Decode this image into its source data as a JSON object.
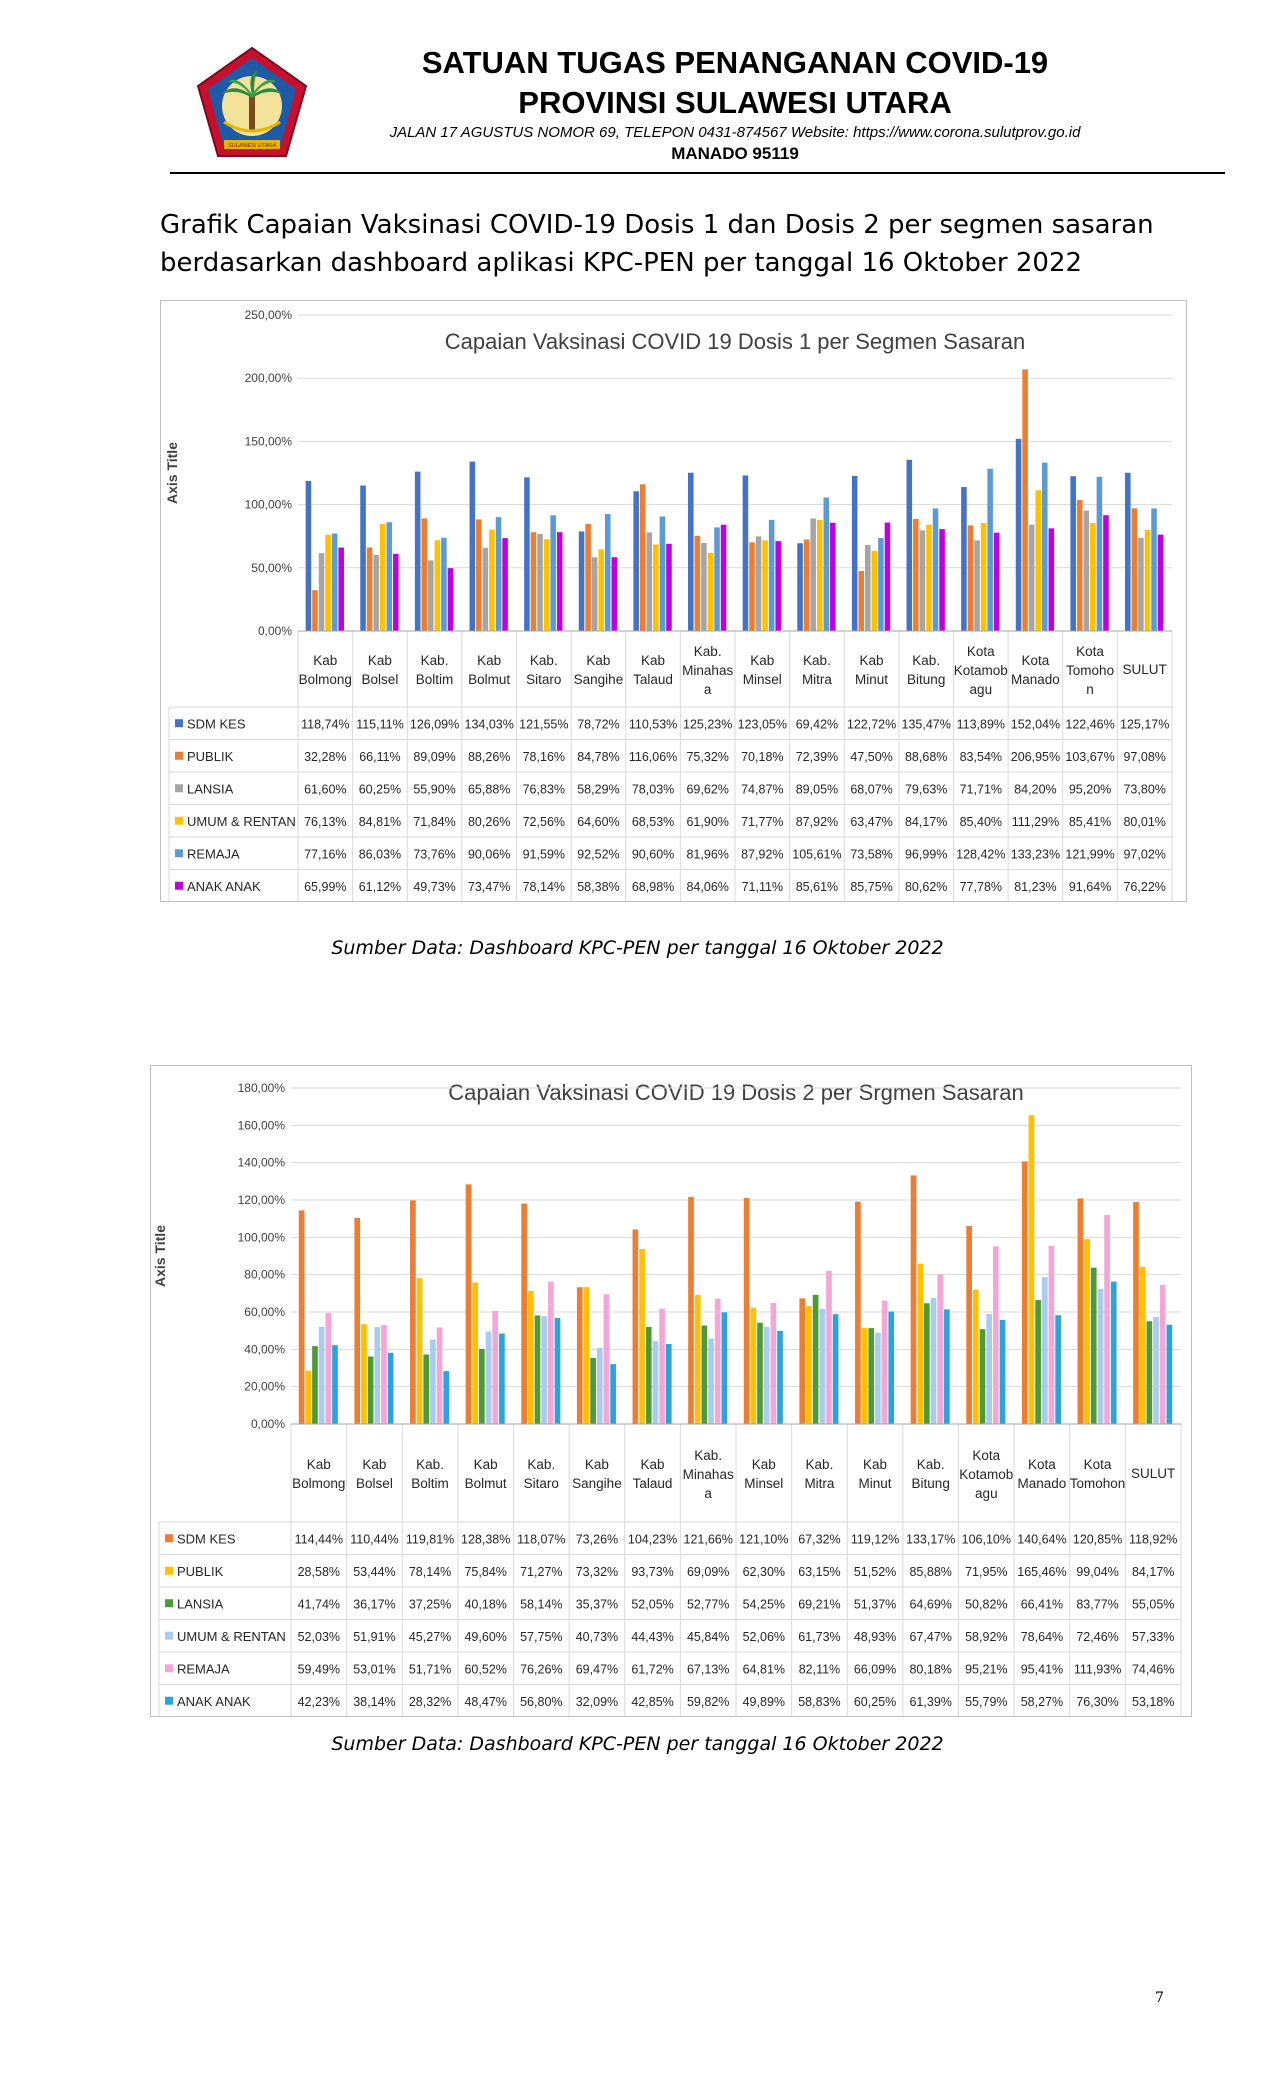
{
  "header": {
    "title_line1": "SATUAN TUGAS PENANGANAN COVID-19",
    "title_line2": "PROVINSI SULAWESI UTARA",
    "address": "JALAN  17  AGUSTUS  NOMOR  69,  TELEPON  0431-874567  Website: https://www.corona.sulutprov.go.id",
    "city": "MANADO  95119",
    "logo_text": "SULAWESI UTARA",
    "logo_colors": {
      "outer": "#c8102e",
      "inner": "#1e5aa8",
      "leaf": "#2e8b3e",
      "gold": "#e8b400"
    }
  },
  "intro": {
    "line1": "Grafik Capaian Vaksinasi COVID-19 Dosis 1 dan Dosis 2 per segmen sasaran",
    "line2": "berdasarkan dashboard aplikasi KPC-PEN per tanggal 16 Oktober 2022"
  },
  "source_1": "Sumber Data: Dashboard KPC-PEN per tanggal 16 Oktober 2022",
  "source_2": "Sumber Data: Dashboard KPC-PEN per tanggal 16 Oktober 2022",
  "page_number": "7",
  "chart_data": [
    {
      "type": "bar",
      "title": "Capaian Vaksinasi COVID 19 Dosis 1 per Segmen Sasaran",
      "ylabel": "Axis Title",
      "xlabel": "",
      "ylim": [
        0,
        250
      ],
      "yticks": [
        "0,00%",
        "50,00%",
        "100,00%",
        "150,00%",
        "200,00%",
        "250,00%"
      ],
      "grid": true,
      "legend": "data-table",
      "categories": [
        [
          "Kab",
          "Bolmong"
        ],
        [
          "Kab",
          "Bolsel"
        ],
        [
          "Kab.",
          "Boltim"
        ],
        [
          "Kab",
          "Bolmut"
        ],
        [
          "Kab.",
          "Sitaro"
        ],
        [
          "Kab",
          "Sangihe"
        ],
        [
          "Kab",
          "Talaud"
        ],
        [
          "Kab.",
          "Minahas",
          "a"
        ],
        [
          "Kab",
          "Minsel"
        ],
        [
          "Kab.",
          "Mitra"
        ],
        [
          "Kab",
          "Minut"
        ],
        [
          "Kab.",
          "Bitung"
        ],
        [
          "Kota",
          "Kotamob",
          "agu"
        ],
        [
          "Kota",
          "Manado"
        ],
        [
          "Kota",
          "Tomoho",
          "n"
        ],
        [
          "SULUT"
        ]
      ],
      "series": [
        {
          "name": "SDM KES",
          "color": "#4472c4",
          "values": [
            118.74,
            115.11,
            126.09,
            134.03,
            121.55,
            78.72,
            110.53,
            125.23,
            123.05,
            69.42,
            122.72,
            135.47,
            113.89,
            152.04,
            122.46,
            125.17
          ],
          "labels": [
            "118,74%",
            "115,11%",
            "126,09%",
            "134,03%",
            "121,55%",
            "78,72%",
            "110,53%",
            "125,23%",
            "123,05%",
            "69,42%",
            "122,72%",
            "135,47%",
            "113,89%",
            "152,04%",
            "122,46%",
            "125,17%"
          ]
        },
        {
          "name": "PUBLIK",
          "color": "#ed7d31",
          "values": [
            32.28,
            66.11,
            89.09,
            88.26,
            78.16,
            84.78,
            116.06,
            75.32,
            70.18,
            72.39,
            47.5,
            88.68,
            83.54,
            206.95,
            103.67,
            97.08
          ],
          "labels": [
            "32,28%",
            "66,11%",
            "89,09%",
            "88,26%",
            "78,16%",
            "84,78%",
            "116,06%",
            "75,32%",
            "70,18%",
            "72,39%",
            "47,50%",
            "88,68%",
            "83,54%",
            "206,95%",
            "103,67%",
            "97,08%"
          ]
        },
        {
          "name": "LANSIA",
          "color": "#a5a5a5",
          "values": [
            61.6,
            60.25,
            55.9,
            65.88,
            76.83,
            58.29,
            78.03,
            69.62,
            74.87,
            89.05,
            68.07,
            79.63,
            71.71,
            84.2,
            95.2,
            73.8
          ],
          "labels": [
            "61,60%",
            "60,25%",
            "55,90%",
            "65,88%",
            "76,83%",
            "58,29%",
            "78,03%",
            "69,62%",
            "74,87%",
            "89,05%",
            "68,07%",
            "79,63%",
            "71,71%",
            "84,20%",
            "95,20%",
            "73,80%"
          ]
        },
        {
          "name": "UMUM & RENTAN",
          "color": "#ffc000",
          "values": [
            76.13,
            84.81,
            71.84,
            80.26,
            72.56,
            64.6,
            68.53,
            61.9,
            71.77,
            87.92,
            63.47,
            84.17,
            85.4,
            111.29,
            85.41,
            80.01
          ],
          "labels": [
            "76,13%",
            "84,81%",
            "71,84%",
            "80,26%",
            "72,56%",
            "64,60%",
            "68,53%",
            "61,90%",
            "71,77%",
            "87,92%",
            "63,47%",
            "84,17%",
            "85,40%",
            "111,29%",
            "85,41%",
            "80,01%"
          ]
        },
        {
          "name": "REMAJA",
          "color": "#5b9bd5",
          "values": [
            77.16,
            86.03,
            73.76,
            90.06,
            91.59,
            92.52,
            90.6,
            81.96,
            87.92,
            105.61,
            73.58,
            96.99,
            128.42,
            133.23,
            121.99,
            97.02
          ],
          "labels": [
            "77,16%",
            "86,03%",
            "73,76%",
            "90,06%",
            "91,59%",
            "92,52%",
            "90,60%",
            "81,96%",
            "87,92%",
            "105,61%",
            "73,58%",
            "96,99%",
            "128,42%",
            "133,23%",
            "121,99%",
            "97,02%"
          ]
        },
        {
          "name": "ANAK ANAK",
          "color": "#c000e0",
          "values": [
            65.99,
            61.12,
            49.73,
            73.47,
            78.14,
            58.38,
            68.98,
            84.06,
            71.11,
            85.61,
            85.75,
            80.62,
            77.78,
            81.23,
            91.64,
            76.22
          ],
          "labels": [
            "65,99%",
            "61,12%",
            "49,73%",
            "73,47%",
            "78,14%",
            "58,38%",
            "68,98%",
            "84,06%",
            "71,11%",
            "85,61%",
            "85,75%",
            "80,62%",
            "77,78%",
            "81,23%",
            "91,64%",
            "76,22%"
          ]
        }
      ]
    },
    {
      "type": "bar",
      "title": "Capaian Vaksinasi COVID 19 Dosis 2 per Srgmen Sasaran",
      "ylabel": "Axis Title",
      "xlabel": "",
      "ylim": [
        0,
        180
      ],
      "yticks": [
        "0,00%",
        "20,00%",
        "40,00%",
        "60,00%",
        "80,00%",
        "100,00%",
        "120,00%",
        "140,00%",
        "160,00%",
        "180,00%"
      ],
      "grid": true,
      "legend": "data-table",
      "categories": [
        [
          "Kab",
          "Bolmong"
        ],
        [
          "Kab",
          "Bolsel"
        ],
        [
          "Kab.",
          "Boltim"
        ],
        [
          "Kab",
          "Bolmut"
        ],
        [
          "Kab.",
          "Sitaro"
        ],
        [
          "Kab",
          "Sangihe"
        ],
        [
          "Kab",
          "Talaud"
        ],
        [
          "Kab.",
          "Minahas",
          "a"
        ],
        [
          "Kab",
          "Minsel"
        ],
        [
          "Kab.",
          "Mitra"
        ],
        [
          "Kab",
          "Minut"
        ],
        [
          "Kab.",
          "Bitung"
        ],
        [
          "Kota",
          "Kotamob",
          "agu"
        ],
        [
          "Kota",
          "Manado"
        ],
        [
          "Kota",
          "Tomohon"
        ],
        [
          "SULUT"
        ]
      ],
      "series": [
        {
          "name": "SDM KES",
          "color": "#ed7d31",
          "values": [
            114.44,
            110.44,
            119.81,
            128.38,
            118.07,
            73.26,
            104.23,
            121.66,
            121.1,
            67.32,
            119.12,
            133.17,
            106.1,
            140.64,
            120.85,
            118.92
          ],
          "labels": [
            "114,44%",
            "110,44%",
            "119,81%",
            "128,38%",
            "118,07%",
            "73,26%",
            "104,23%",
            "121,66%",
            "121,10%",
            "67,32%",
            "119,12%",
            "133,17%",
            "106,10%",
            "140,64%",
            "120,85%",
            "118,92%"
          ]
        },
        {
          "name": "PUBLIK",
          "color": "#ffc000",
          "values": [
            28.58,
            53.44,
            78.14,
            75.84,
            71.27,
            73.32,
            93.73,
            69.09,
            62.3,
            63.15,
            51.52,
            85.88,
            71.95,
            165.46,
            99.04,
            84.17
          ],
          "labels": [
            "28,58%",
            "53,44%",
            "78,14%",
            "75,84%",
            "71,27%",
            "73,32%",
            "93,73%",
            "69,09%",
            "62,30%",
            "63,15%",
            "51,52%",
            "85,88%",
            "71,95%",
            "165,46%",
            "99,04%",
            "84,17%"
          ]
        },
        {
          "name": "LANSIA",
          "color": "#4e9a3a",
          "values": [
            41.74,
            36.17,
            37.25,
            40.18,
            58.14,
            35.37,
            52.05,
            52.77,
            54.25,
            69.21,
            51.37,
            64.69,
            50.82,
            66.41,
            83.77,
            55.05
          ],
          "labels": [
            "41,74%",
            "36,17%",
            "37,25%",
            "40,18%",
            "58,14%",
            "35,37%",
            "52,05%",
            "52,77%",
            "54,25%",
            "69,21%",
            "51,37%",
            "64,69%",
            "50,82%",
            "66,41%",
            "83,77%",
            "55,05%"
          ]
        },
        {
          "name": "UMUM & RENTAN",
          "color": "#a9cbee",
          "values": [
            52.03,
            51.91,
            45.27,
            49.6,
            57.75,
            40.73,
            44.43,
            45.84,
            52.06,
            61.73,
            48.93,
            67.47,
            58.92,
            78.64,
            72.46,
            57.33
          ],
          "labels": [
            "52,03%",
            "51,91%",
            "45,27%",
            "49,60%",
            "57,75%",
            "40,73%",
            "44,43%",
            "45,84%",
            "52,06%",
            "61,73%",
            "48,93%",
            "67,47%",
            "58,92%",
            "78,64%",
            "72,46%",
            "57,33%"
          ]
        },
        {
          "name": "REMAJA",
          "color": "#f4a6d7",
          "values": [
            59.49,
            53.01,
            51.71,
            60.52,
            76.26,
            69.47,
            61.72,
            67.13,
            64.81,
            82.11,
            66.09,
            80.18,
            95.21,
            95.41,
            111.93,
            74.46
          ],
          "labels": [
            "59,49%",
            "53,01%",
            "51,71%",
            "60,52%",
            "76,26%",
            "69,47%",
            "61,72%",
            "67,13%",
            "64,81%",
            "82,11%",
            "66,09%",
            "80,18%",
            "95,21%",
            "95,41%",
            "111,93%",
            "74,46%"
          ]
        },
        {
          "name": "ANAK ANAK",
          "color": "#2aa5dc",
          "values": [
            42.23,
            38.14,
            28.32,
            48.47,
            56.8,
            32.09,
            42.85,
            59.82,
            49.89,
            58.83,
            60.25,
            61.39,
            55.79,
            58.27,
            76.3,
            53.18
          ],
          "labels": [
            "42,23%",
            "38,14%",
            "28,32%",
            "48,47%",
            "56,80%",
            "32,09%",
            "42,85%",
            "59,82%",
            "49,89%",
            "58,83%",
            "60,25%",
            "61,39%",
            "55,79%",
            "58,27%",
            "76,30%",
            "53,18%"
          ]
        }
      ]
    }
  ]
}
